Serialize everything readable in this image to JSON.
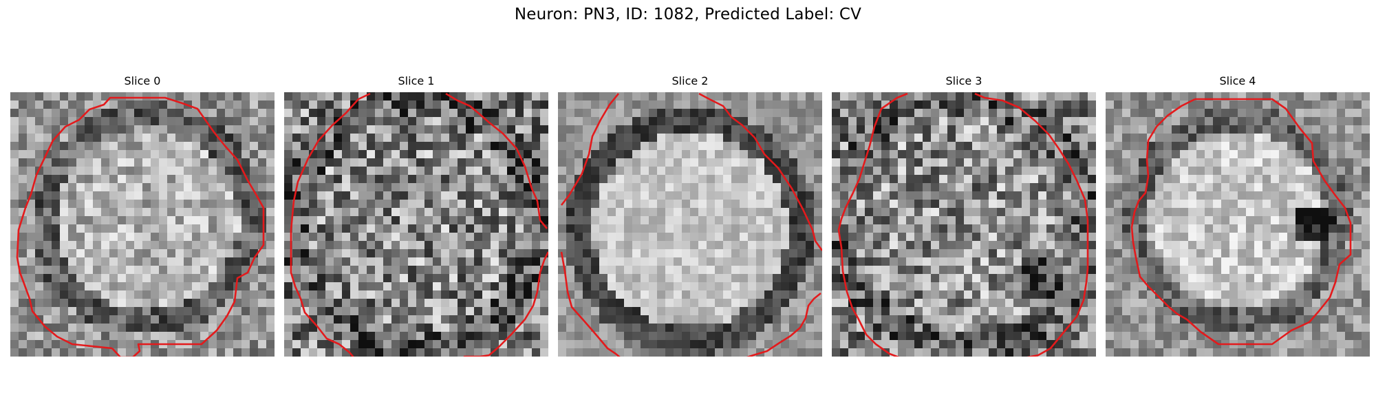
{
  "figure": {
    "title": "Neuron: PN3, ID: 1082, Predicted Label: CV"
  },
  "panels": [
    {
      "title": "Slice 0"
    },
    {
      "title": "Slice 1"
    },
    {
      "title": "Slice 2"
    },
    {
      "title": "Slice 3"
    },
    {
      "title": "Slice 4"
    }
  ],
  "colors": {
    "contour": "#e31a1c",
    "background": "#ffffff"
  }
}
